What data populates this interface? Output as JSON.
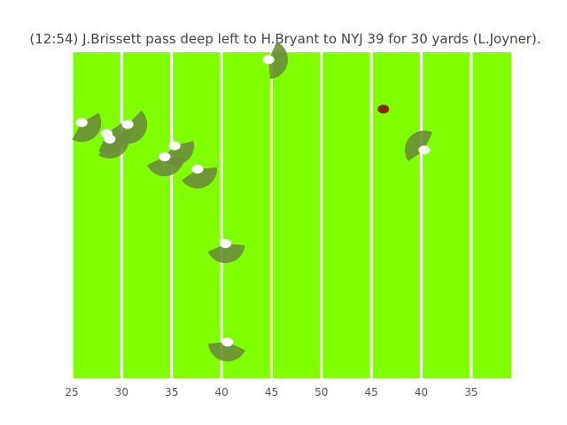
{
  "chart_data": {
    "type": "scatter",
    "title": "(12:54) J.Brissett pass deep left to H.Bryant to NYJ 39 for 30 yards (L.Joyner).",
    "xlabel": "",
    "ylabel": "",
    "xlim": [
      23.5,
      35.9
    ],
    "ylim": [
      53.3,
      0
    ],
    "field_color": "#7fff00",
    "yard_line_color": "#ffffff",
    "player_color": "#ffffff",
    "cone_color": "#6b8e3a",
    "ball_color": "#8b2500",
    "yard_lines": [
      25,
      30,
      35,
      40,
      45,
      50,
      45,
      40,
      35
    ],
    "tick_labels": [
      "25",
      "30",
      "35",
      "40",
      "45",
      "50",
      "45",
      "40",
      "35"
    ],
    "players": [
      {
        "x": 21.0,
        "y": 11.5,
        "dir": 45
      },
      {
        "x": 23.5,
        "y": 13.3,
        "dir": 40
      },
      {
        "x": 23.8,
        "y": 14.2,
        "dir": 50
      },
      {
        "x": 25.6,
        "y": 11.8,
        "dir": 30
      },
      {
        "x": 29.3,
        "y": 17.1,
        "dir": 80
      },
      {
        "x": 30.3,
        "y": 15.3,
        "dir": 60
      },
      {
        "x": 32.6,
        "y": 19.1,
        "dir": 70
      },
      {
        "x": 35.4,
        "y": 31.3,
        "dir": 80
      },
      {
        "x": 35.6,
        "y": 47.4,
        "dir": 100
      },
      {
        "x": 39.7,
        "y": 1.2,
        "dir": 10
      },
      {
        "x": 55.3,
        "y": 16.0,
        "dir": 220
      }
    ],
    "ball": {
      "x": 51.2,
      "y": 9.3
    }
  }
}
